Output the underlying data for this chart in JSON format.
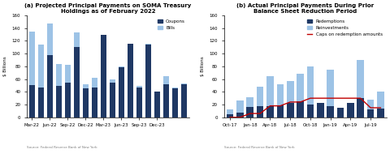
{
  "chart_a": {
    "title": "(a) Projected Principal Payments on SOMA Treasury\nHoldings as of February 2022",
    "ylabel": "$ Billions",
    "ylim": [
      0,
      160
    ],
    "yticks": [
      0,
      20,
      40,
      60,
      80,
      100,
      120,
      140,
      160
    ],
    "coupons": [
      50,
      47,
      97,
      49,
      55,
      110,
      45,
      47,
      130,
      55,
      78,
      115,
      47,
      114,
      40,
      52,
      46,
      52
    ],
    "bills": [
      85,
      67,
      50,
      35,
      28,
      23,
      7,
      15,
      0,
      5,
      2,
      1,
      2,
      1,
      0,
      13,
      1,
      1
    ],
    "tick_positions": [
      0,
      2,
      4,
      6,
      8,
      10,
      12,
      14
    ],
    "tick_labels": [
      "Mar-22",
      "Jun-22",
      "Sep-22",
      "Dec-22",
      "Mar-23",
      "Jun-23",
      "Sep-23",
      "Dec-23"
    ],
    "color_coupons": "#1f3864",
    "color_bills": "#9dc3e6",
    "source": "Source: Federal Reserve Bank of New York"
  },
  "chart_b": {
    "title": "(b) Actual Principal Payments During Prior\nBalance Sheet Reduction Period",
    "ylabel": "$ Billions",
    "ylim": [
      0,
      160
    ],
    "yticks": [
      0,
      20,
      40,
      60,
      80,
      100,
      120,
      140,
      160
    ],
    "redemptions": [
      5,
      7,
      16,
      18,
      17,
      19,
      23,
      25,
      20,
      22,
      17,
      15,
      22,
      30,
      13,
      14
    ],
    "reinvestments": [
      8,
      20,
      15,
      30,
      48,
      33,
      34,
      44,
      60,
      0,
      58,
      0,
      1,
      60,
      15,
      27
    ],
    "caps_x": [
      0,
      1,
      2,
      3,
      4,
      5,
      6,
      7,
      8,
      9,
      10,
      11,
      12,
      13,
      14,
      15
    ],
    "caps_y": [
      0,
      0,
      6,
      6,
      18,
      18,
      24,
      24,
      30,
      30,
      30,
      30,
      30,
      30,
      15,
      15
    ],
    "tick_positions": [
      0,
      2,
      4,
      6,
      8,
      10,
      12,
      14
    ],
    "tick_labels": [
      "Oct-17",
      "Jan-18",
      "Apr-18",
      "Jul-18",
      "Oct-18",
      "Jan-19",
      "Apr-19",
      "Jul-19"
    ],
    "color_redemptions": "#1f3864",
    "color_reinvestments": "#9dc3e6",
    "color_caps": "#c00000",
    "source": "Source: Federal Reserve Bank of New York"
  }
}
